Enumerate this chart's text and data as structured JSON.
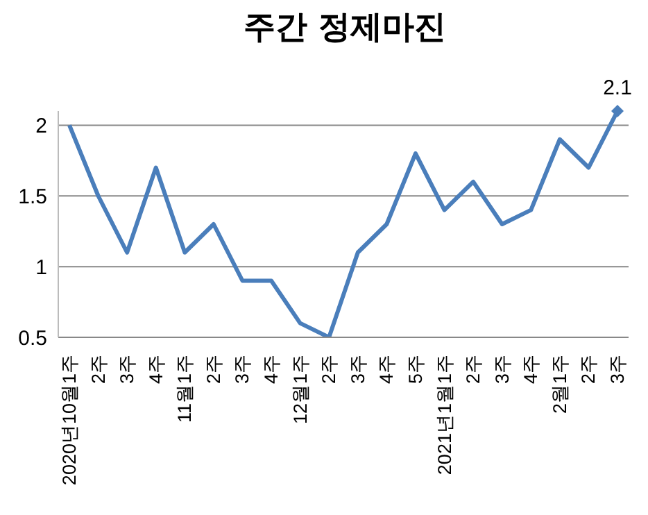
{
  "chart_data": {
    "type": "line",
    "title": "주간 정제마진",
    "categories": [
      "2020년10월1주",
      "2주",
      "3주",
      "4주",
      "11월1주",
      "2주",
      "3주",
      "4주",
      "12월1주",
      "2주",
      "3주",
      "4주",
      "5주",
      "2021년1월1주",
      "2주",
      "3주",
      "4주",
      "2월1주",
      "2주",
      "3주"
    ],
    "series": [
      {
        "color": "#4a7ebb",
        "values": [
          2,
          1.5,
          1.1,
          1.7,
          1.1,
          1.3,
          0.9,
          0.9,
          0.6,
          0.5,
          1.1,
          1.3,
          1.8,
          1.4,
          1.6,
          1.3,
          1.4,
          1.9,
          1.7,
          2.1
        ],
        "value_labels": [
          null,
          null,
          null,
          null,
          null,
          null,
          null,
          null,
          null,
          null,
          null,
          null,
          null,
          null,
          null,
          null,
          null,
          null,
          null,
          "2.1"
        ]
      }
    ],
    "ylim": [
      0.5,
      2.1
    ],
    "yticks": [
      0.5,
      1,
      1.5,
      2
    ],
    "grid": "y",
    "line_style": "solid",
    "legend": false
  }
}
